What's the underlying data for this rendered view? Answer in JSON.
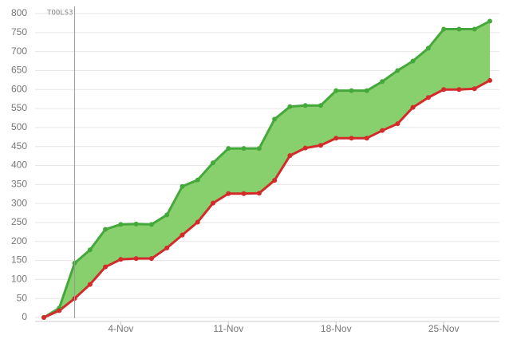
{
  "chart_data": {
    "type": "line",
    "categories": [
      null,
      null,
      null,
      null,
      null,
      "4-Nov",
      null,
      null,
      null,
      null,
      null,
      null,
      "11-Nov",
      null,
      null,
      null,
      null,
      null,
      null,
      "18-Nov",
      null,
      null,
      null,
      null,
      null,
      null,
      "25-Nov",
      null,
      null,
      null
    ],
    "series": [
      {
        "color": "#45a83b",
        "values": [
          0,
          25,
          143,
          178,
          232,
          245,
          246,
          245,
          270,
          345,
          362,
          407,
          445,
          445,
          445,
          522,
          555,
          558,
          558,
          597,
          597,
          597,
          621,
          650,
          675,
          709,
          759,
          759,
          759,
          780
        ]
      },
      {
        "color": "#d42a2a",
        "values": [
          0,
          18,
          50,
          87,
          133,
          153,
          155,
          155,
          183,
          217,
          251,
          301,
          326,
          326,
          327,
          361,
          426,
          446,
          453,
          472,
          472,
          472,
          492,
          510,
          553,
          579,
          600,
          600,
          602,
          624
        ]
      }
    ],
    "fill_between": "#88cf6e",
    "annotation": {
      "at": 2,
      "text": "TOOLS3"
    },
    "ylim": [
      0,
      800
    ],
    "yticks": [
      0,
      50,
      100,
      150,
      200,
      250,
      300,
      350,
      400,
      450,
      500,
      550,
      600,
      650,
      700,
      750,
      800
    ],
    "grid": true
  }
}
